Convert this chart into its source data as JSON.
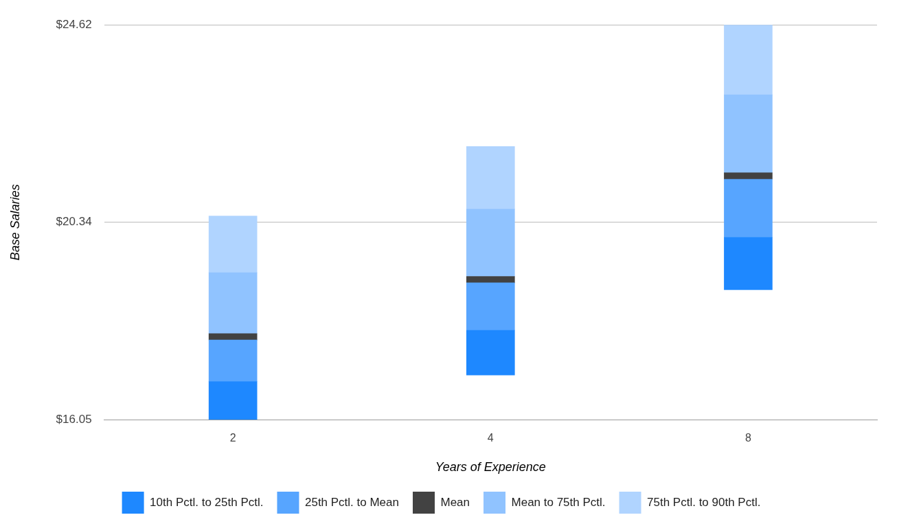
{
  "chart_data": {
    "type": "bar",
    "xlabel": "Years of Experience",
    "ylabel": "Base Salaries",
    "categories": [
      "2",
      "4",
      "8"
    ],
    "series": [
      {
        "name": "10th Pctl. to 25th Pctl.",
        "color": "#1e88ff",
        "base": [
          16.05,
          17.02,
          18.87
        ],
        "values": [
          0.83,
          0.97,
          1.14
        ]
      },
      {
        "name": "25th Pctl. to Mean",
        "color": "#57a5ff",
        "base": [
          16.88,
          17.99,
          20.01
        ],
        "values": [
          0.9,
          1.03,
          1.26
        ]
      },
      {
        "name": "Mean",
        "color": "#424242",
        "base": [
          17.78,
          19.02,
          21.27
        ],
        "values": [
          0.14,
          0.14,
          0.14
        ]
      },
      {
        "name": "Mean to 75th Pctl.",
        "color": "#90c3ff",
        "base": [
          17.92,
          19.16,
          21.41
        ],
        "values": [
          1.32,
          1.46,
          1.69
        ]
      },
      {
        "name": "75th Pctl. to 90th Pctl.",
        "color": "#b0d4ff",
        "base": [
          19.24,
          20.62,
          23.1
        ],
        "values": [
          1.23,
          1.36,
          1.52
        ]
      }
    ],
    "ylim": [
      16.05,
      24.62
    ],
    "yticks": [
      {
        "value": 16.05,
        "label": "$16.05"
      },
      {
        "value": 20.34,
        "label": "$20.34"
      },
      {
        "value": 24.62,
        "label": "$24.62"
      }
    ],
    "grid": "y",
    "legend": "bottom"
  }
}
